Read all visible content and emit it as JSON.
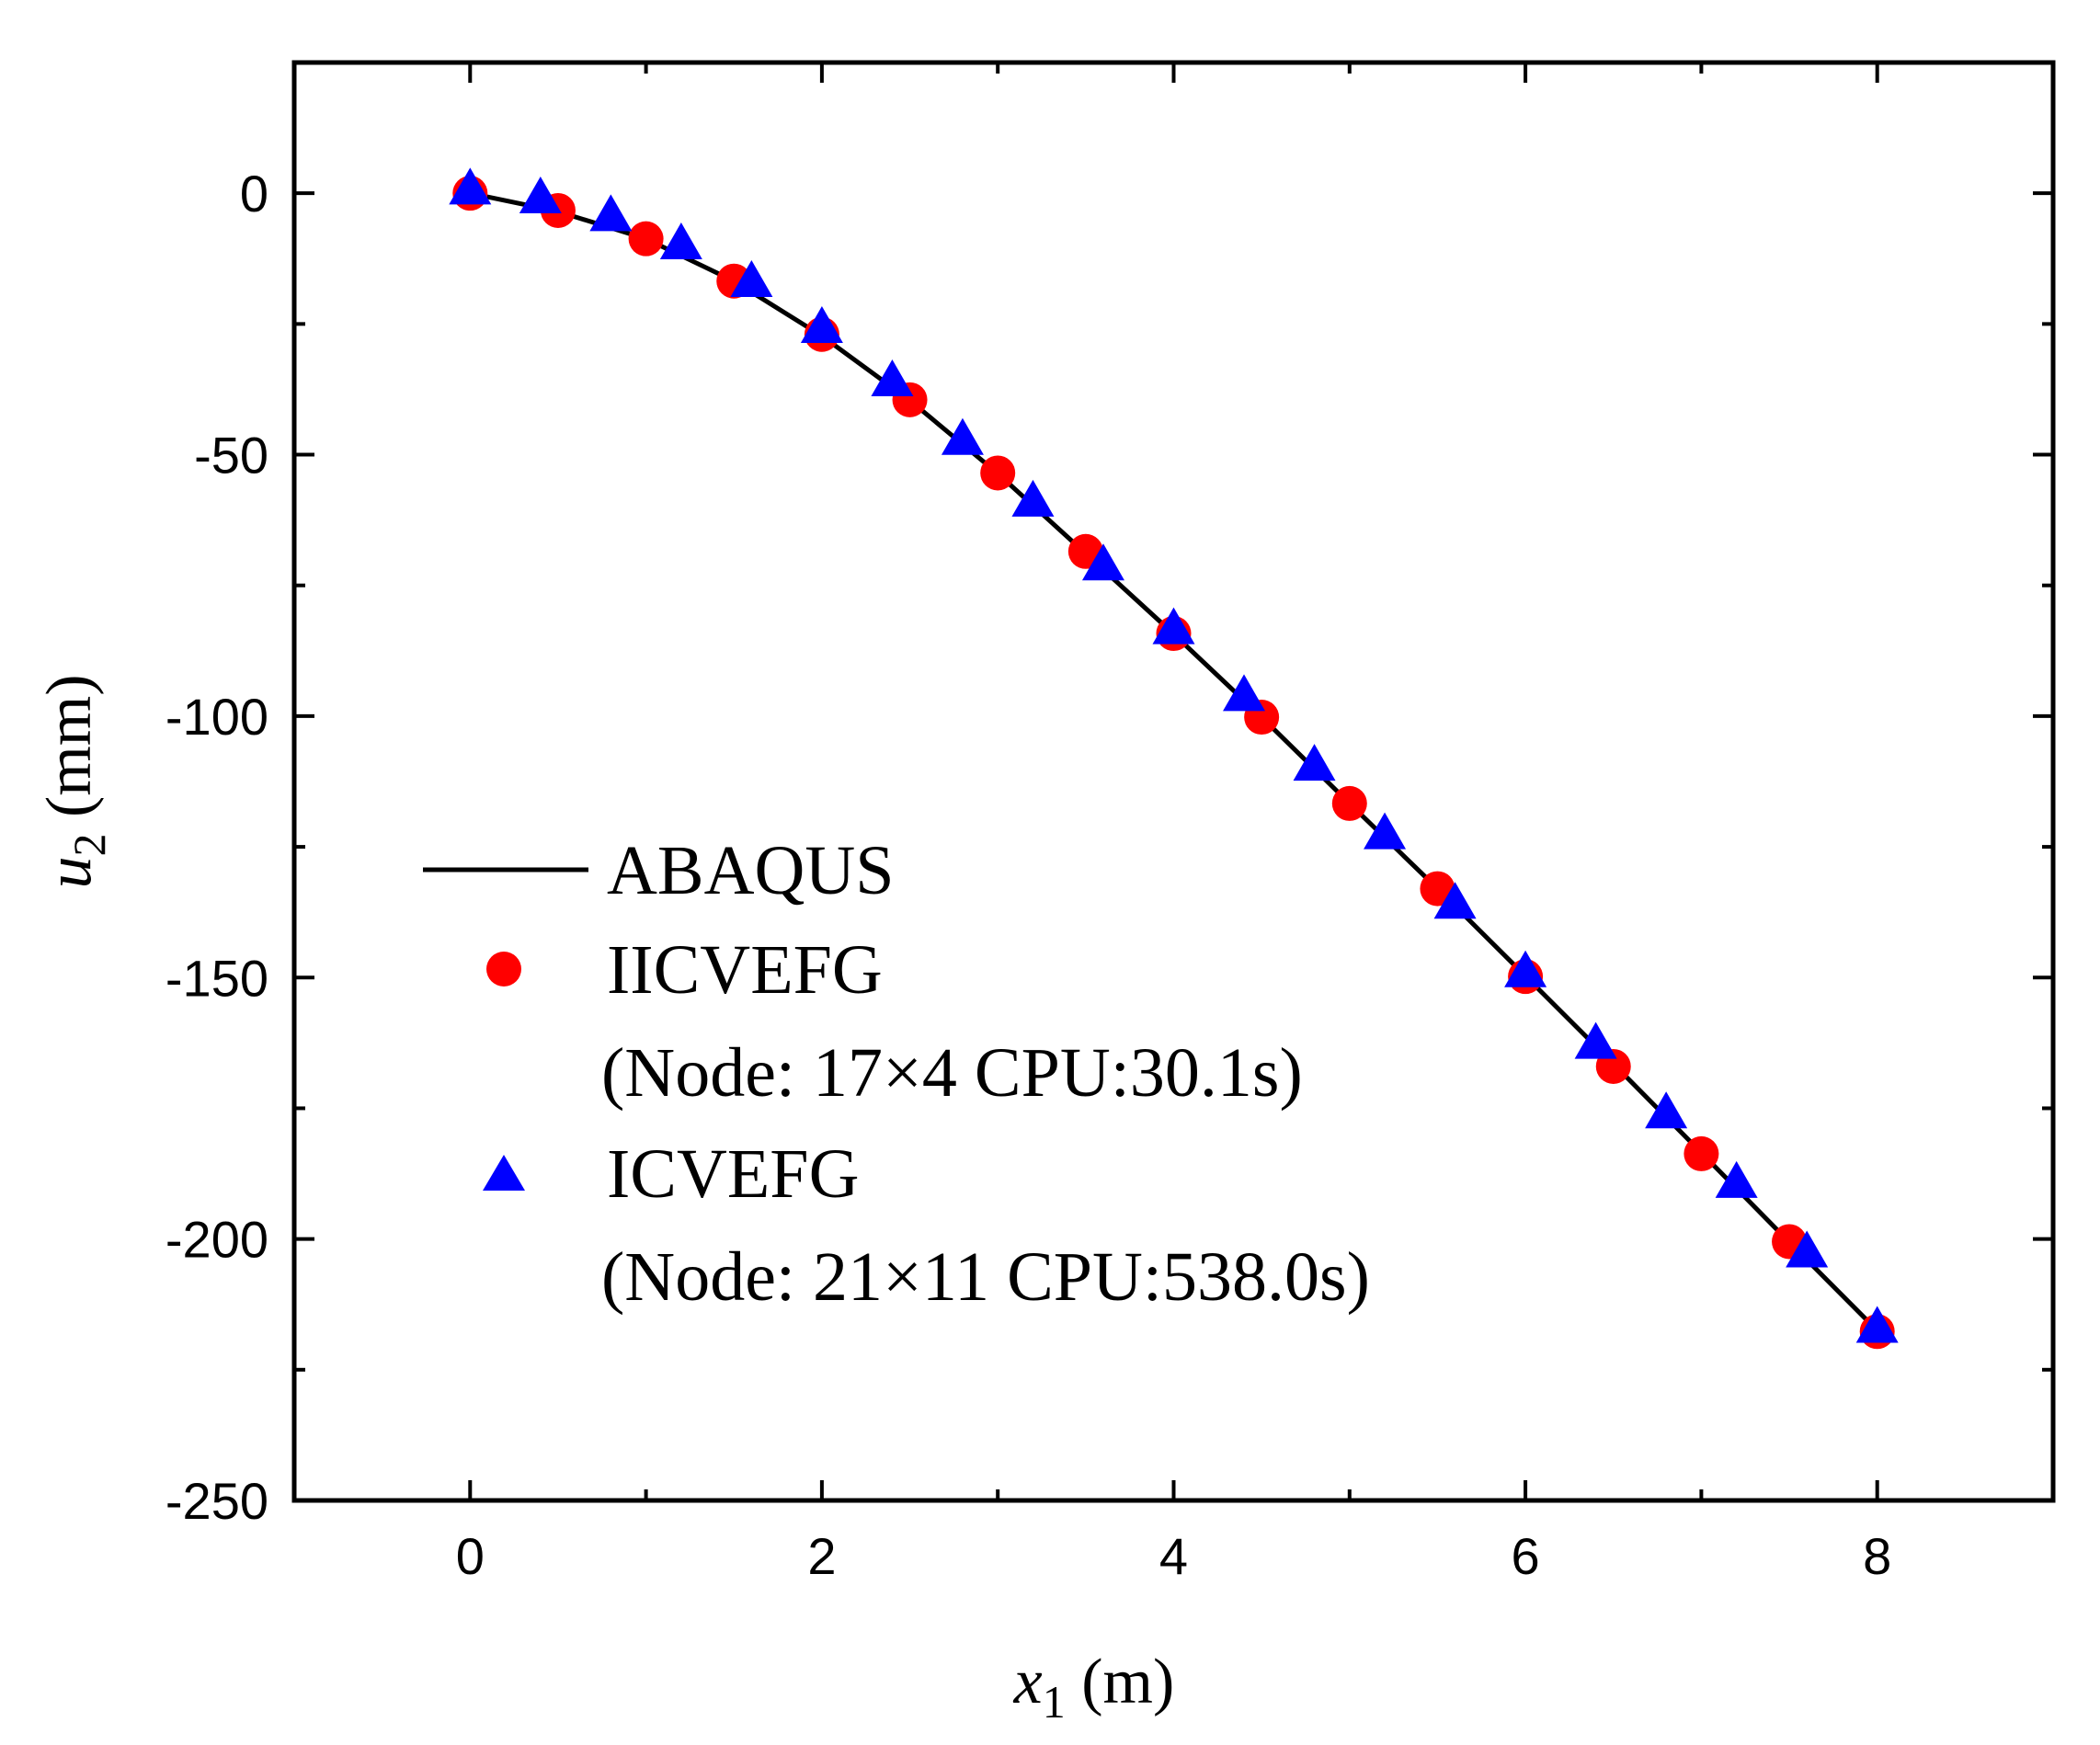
{
  "chart_data": {
    "type": "line",
    "xlabel": {
      "var": "x",
      "sub": "1",
      "unit": " (m)"
    },
    "ylabel": {
      "var": "u",
      "sub": "2",
      "unit": " (mm)"
    },
    "xlim": [
      -1,
      9
    ],
    "ylim": [
      -250,
      25
    ],
    "xticks": [
      0,
      2,
      4,
      6,
      8
    ],
    "yticks": [
      0,
      -50,
      -100,
      -150,
      -200,
      -250
    ],
    "grid": false,
    "legend_position": "center-left",
    "series": [
      {
        "name": "ABAQUS",
        "kind": "line",
        "color": "#000000",
        "x": [
          0,
          0.5,
          1,
          1.5,
          2,
          2.5,
          3,
          3.5,
          4,
          4.5,
          5,
          5.5,
          6,
          6.5,
          7,
          7.5,
          8
        ],
        "values": [
          0,
          -3.5,
          -8.7,
          -16.8,
          -27.3,
          -39.6,
          -53.6,
          -68.9,
          -84.3,
          -100.2,
          -116.7,
          -133.0,
          -149.7,
          -166.5,
          -183.5,
          -200.6,
          -217.5
        ]
      },
      {
        "name": "IICVEFG",
        "note": "(Node: 17×4  CPU:30.1s)",
        "kind": "marker-circle",
        "color": "#ff0000",
        "x": [
          0,
          0.5,
          1,
          1.5,
          2,
          2.5,
          3,
          3.5,
          4,
          4.5,
          5,
          5.5,
          6,
          6.5,
          7,
          7.5,
          8
        ],
        "values": [
          0,
          -3.3,
          -8.7,
          -16.8,
          -27.0,
          -39.5,
          -53.5,
          -68.5,
          -84.2,
          -100.2,
          -116.7,
          -133.0,
          -149.8,
          -167.0,
          -183.7,
          -200.5,
          -217.7
        ]
      },
      {
        "name": "ICVEFG",
        "note": "(Node: 21×11  CPU:538.0s)",
        "kind": "marker-triangle",
        "color": "#0000ff",
        "x": [
          0,
          0.4,
          0.8,
          1.2,
          1.6,
          2.0,
          2.4,
          2.8,
          3.2,
          3.6,
          4.0,
          4.4,
          4.8,
          5.2,
          5.6,
          6.0,
          6.4,
          6.8,
          7.2,
          7.6,
          8.0
        ],
        "values": [
          0.5,
          -1.2,
          -4.6,
          -10.0,
          -17.2,
          -26.0,
          -36.2,
          -47.4,
          -59.2,
          -71.4,
          -83.6,
          -96.4,
          -109.7,
          -122.8,
          -136.1,
          -149.2,
          -162.9,
          -176.2,
          -189.5,
          -202.8,
          -217.2
        ]
      }
    ]
  }
}
